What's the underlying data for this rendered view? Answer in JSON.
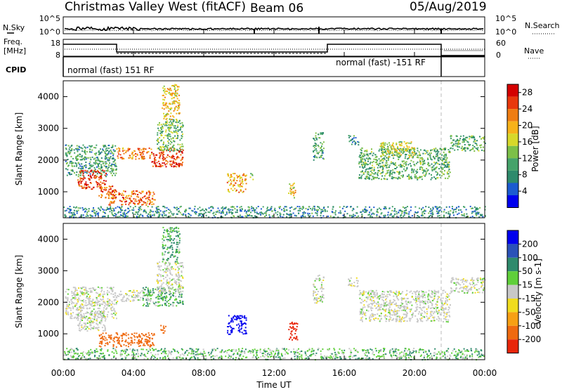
{
  "header": {
    "station": "Christmas Valley West (fitACF)",
    "beam": "Beam 06",
    "date": "05/Aug/2019"
  },
  "strip_labels": {
    "nsky": "N.Sky",
    "nsearch": "N.Search",
    "freq_line1": "Freq.",
    "freq_line2": "[MHz]",
    "nave": "Nave",
    "cpid": "CPID",
    "nsky_ticks": [
      "10^5",
      "10^0"
    ],
    "nsearch_ticks": [
      "10^5",
      "10^0"
    ],
    "freq_ticks": [
      "18",
      "8"
    ],
    "nave_ticks": [
      "60",
      "0"
    ]
  },
  "cpid_segments": [
    {
      "label": "normal (fast) 151 RF"
    },
    {
      "label": "normal (fast) -151 RF"
    }
  ],
  "x_axis": {
    "label": "Time UT",
    "ticks": [
      "00:00",
      "04:00",
      "08:00",
      "12:00",
      "16:00",
      "20:00",
      "00:00"
    ]
  },
  "chart_data": [
    {
      "type": "heatmap",
      "title": "",
      "xlabel": "Time UT",
      "ylabel": "Slant Range [km]",
      "xlim": [
        0,
        24
      ],
      "ylim": [
        180,
        4500
      ],
      "yticks": [
        1000,
        2000,
        3000,
        4000
      ],
      "colorbar": {
        "label": "Power [dB]",
        "ticks": [
          4,
          8,
          12,
          16,
          20,
          24,
          28
        ],
        "range": [
          0,
          30
        ],
        "colors": [
          "#0000ee",
          "#1c5bd0",
          "#2e8a6c",
          "#45a36a",
          "#7cc048",
          "#d7d82a",
          "#f7b21a",
          "#ef7d12",
          "#e8380c",
          "#d40000"
        ]
      },
      "patches": [
        {
          "t": [
            0.1,
            3.0
          ],
          "r": [
            1500,
            2500
          ],
          "v": 10
        },
        {
          "t": [
            0.8,
            2.4
          ],
          "r": [
            1100,
            1700
          ],
          "v": 26
        },
        {
          "t": [
            2.0,
            3.0
          ],
          "r": [
            800,
            1200
          ],
          "v": 24
        },
        {
          "t": [
            2.5,
            5.2
          ],
          "r": [
            600,
            1050
          ],
          "v": 24
        },
        {
          "t": [
            3.0,
            5.0
          ],
          "r": [
            2050,
            2400
          ],
          "v": 22
        },
        {
          "t": [
            5.0,
            6.8
          ],
          "r": [
            1800,
            2400
          ],
          "v": 26
        },
        {
          "t": [
            5.3,
            6.8
          ],
          "r": [
            2300,
            3300
          ],
          "v": 12
        },
        {
          "t": [
            5.6,
            6.6
          ],
          "r": [
            3300,
            4400
          ],
          "v": 18
        },
        {
          "t": [
            9.3,
            10.4
          ],
          "r": [
            1000,
            1600
          ],
          "v": 20
        },
        {
          "t": [
            10.6,
            10.8
          ],
          "r": [
            1400,
            1600
          ],
          "v": 14
        },
        {
          "t": [
            12.8,
            13.2
          ],
          "r": [
            800,
            1300
          ],
          "v": 18
        },
        {
          "t": [
            14.2,
            14.8
          ],
          "r": [
            2000,
            2900
          ],
          "v": 10
        },
        {
          "t": [
            16.2,
            16.8
          ],
          "r": [
            2500,
            2800
          ],
          "v": 9
        },
        {
          "t": [
            16.8,
            22.0
          ],
          "r": [
            1400,
            2400
          ],
          "v": 11
        },
        {
          "t": [
            18.0,
            20.0
          ],
          "r": [
            2100,
            2600
          ],
          "v": 16
        },
        {
          "t": [
            22.0,
            24.0
          ],
          "r": [
            2300,
            2800
          ],
          "v": 11
        },
        {
          "t": [
            0.0,
            24.0
          ],
          "r": [
            200,
            560
          ],
          "v": 8
        }
      ]
    },
    {
      "type": "heatmap",
      "title": "",
      "xlabel": "Time UT",
      "ylabel": "Slant Range [km]",
      "xlim": [
        0,
        24
      ],
      "ylim": [
        180,
        4500
      ],
      "yticks": [
        1000,
        2000,
        3000,
        4000
      ],
      "colorbar": {
        "label": "Velocity [m s-1]",
        "ticks": [
          200,
          100,
          50,
          15,
          -15,
          -50,
          -100,
          -200
        ],
        "range": [
          -250,
          250
        ],
        "colors": [
          "#0000ee",
          "#2a52b8",
          "#2e8a6c",
          "#5fcf3a",
          "#c8c8c8",
          "#f0dc1e",
          "#f7a014",
          "#ef6a10",
          "#e8260a"
        ]
      },
      "patches": [
        {
          "t": [
            0.1,
            3.0
          ],
          "r": [
            1500,
            2500
          ],
          "v": 0
        },
        {
          "t": [
            0.8,
            2.4
          ],
          "r": [
            1100,
            1700
          ],
          "v": 0
        },
        {
          "t": [
            2.0,
            5.2
          ],
          "r": [
            600,
            1050
          ],
          "v": -120
        },
        {
          "t": [
            2.0,
            3.0
          ],
          "r": [
            1900,
            2100
          ],
          "v": 0
        },
        {
          "t": [
            3.0,
            5.0
          ],
          "r": [
            2050,
            2400
          ],
          "v": 0
        },
        {
          "t": [
            4.5,
            6.8
          ],
          "r": [
            1900,
            2500
          ],
          "v": 30
        },
        {
          "t": [
            5.3,
            6.8
          ],
          "r": [
            2300,
            3300
          ],
          "v": 0
        },
        {
          "t": [
            5.6,
            6.6
          ],
          "r": [
            3300,
            4400
          ],
          "v": 30
        },
        {
          "t": [
            5.5,
            5.8
          ],
          "r": [
            1000,
            1300
          ],
          "v": -100
        },
        {
          "t": [
            9.3,
            10.4
          ],
          "r": [
            1000,
            1600
          ],
          "v": 220
        },
        {
          "t": [
            12.8,
            13.3
          ],
          "r": [
            800,
            1400
          ],
          "v": -230
        },
        {
          "t": [
            14.2,
            14.8
          ],
          "r": [
            2000,
            2900
          ],
          "v": 0
        },
        {
          "t": [
            16.2,
            16.8
          ],
          "r": [
            2500,
            2800
          ],
          "v": 0
        },
        {
          "t": [
            16.8,
            22.0
          ],
          "r": [
            1400,
            2400
          ],
          "v": 0
        },
        {
          "t": [
            22.0,
            24.0
          ],
          "r": [
            2300,
            2800
          ],
          "v": 0
        },
        {
          "t": [
            0.0,
            24.0
          ],
          "r": [
            200,
            560
          ],
          "v": 25
        }
      ]
    }
  ]
}
